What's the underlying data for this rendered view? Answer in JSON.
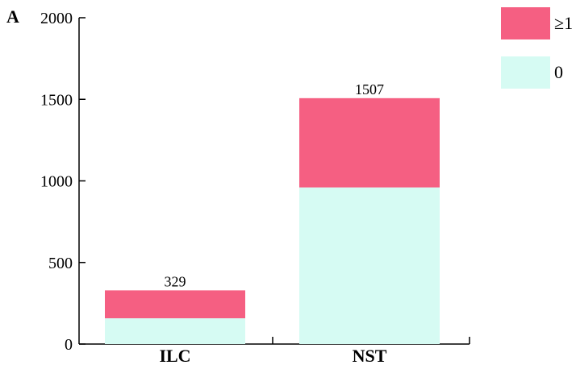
{
  "panel_label": "A",
  "colors": {
    "bottom_series": "#d6fbf3",
    "top_series": "#f55f82",
    "axis": "#000000"
  },
  "chart_data": {
    "type": "bar",
    "stacked": true,
    "categories": [
      "ILC",
      "NST"
    ],
    "series": [
      {
        "name": "0",
        "values": [
          158,
          960
        ]
      },
      {
        "name": "≥1",
        "values": [
          171,
          547
        ]
      }
    ],
    "totals": [
      329,
      1507
    ],
    "total_labels": [
      "329",
      "1507"
    ],
    "ylim": [
      0,
      2000
    ],
    "yticks": [
      0,
      500,
      1000,
      1500,
      2000
    ],
    "ytick_labels": [
      "0",
      "500",
      "1000",
      "1500",
      "2000"
    ],
    "legend": [
      "≥1",
      "0"
    ],
    "legend_position": "top-right",
    "grid": false
  }
}
